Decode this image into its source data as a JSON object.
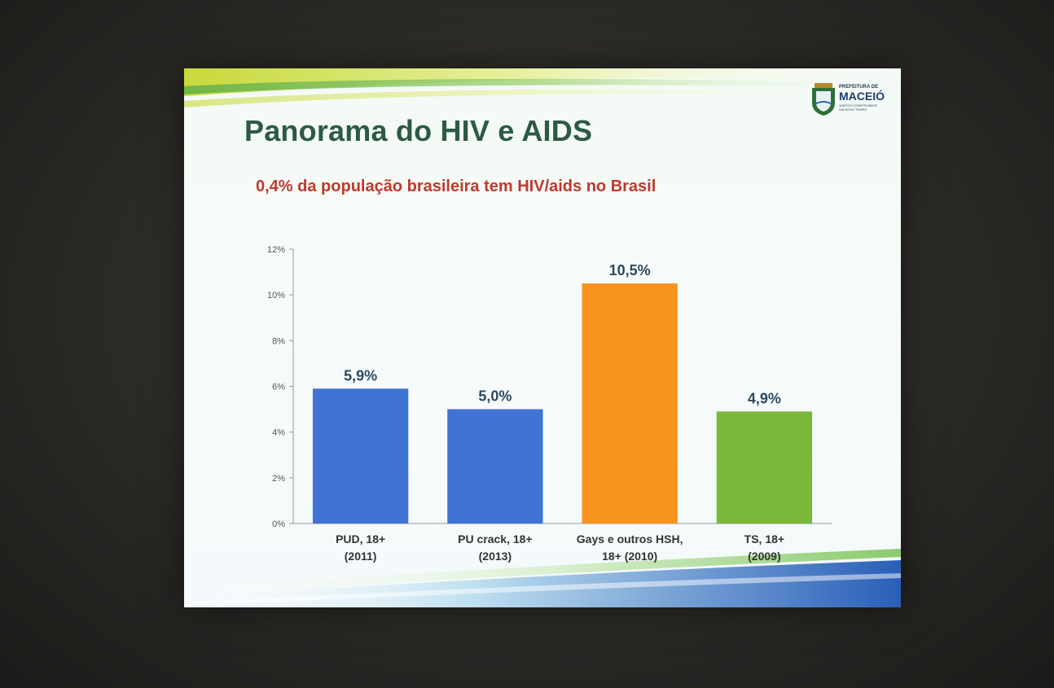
{
  "slide": {
    "title": "Panorama do HIV e AIDS",
    "subtitle": "0,4% da população brasileira tem HIV/aids no Brasil",
    "logo": {
      "line1": "PREFEITURA DE",
      "line2": "MACEIÓ",
      "line3": "JUNTOS CONSTRUÍMOS",
      "line4": "UM NOVO TEMPO"
    }
  },
  "colors": {
    "title": "#2d5a44",
    "subtitle": "#c0392b",
    "blue_bar": "#3f74d4",
    "orange_bar": "#f7931e",
    "green_bar": "#7ab83a"
  },
  "chart_data": {
    "type": "bar",
    "categories": [
      [
        "PUD, 18+",
        "(2011)"
      ],
      [
        "PU crack, 18+",
        "(2013)"
      ],
      [
        "Gays e outros HSH,",
        "18+ (2010)"
      ],
      [
        "TS, 18+",
        "(2009)"
      ]
    ],
    "values": [
      5.9,
      5.0,
      10.5,
      4.9
    ],
    "data_labels": [
      "5,9%",
      "5,0%",
      "10,5%",
      "4,9%"
    ],
    "bar_colors": [
      "#3f74d4",
      "#3f74d4",
      "#f7931e",
      "#7ab83a"
    ],
    "ylim": [
      0,
      12
    ],
    "yticks": [
      0,
      2,
      4,
      6,
      8,
      10,
      12
    ],
    "ytick_labels": [
      "0%",
      "2%",
      "4%",
      "6%",
      "8%",
      "10%",
      "12%"
    ],
    "grid": false,
    "legend": "none"
  }
}
